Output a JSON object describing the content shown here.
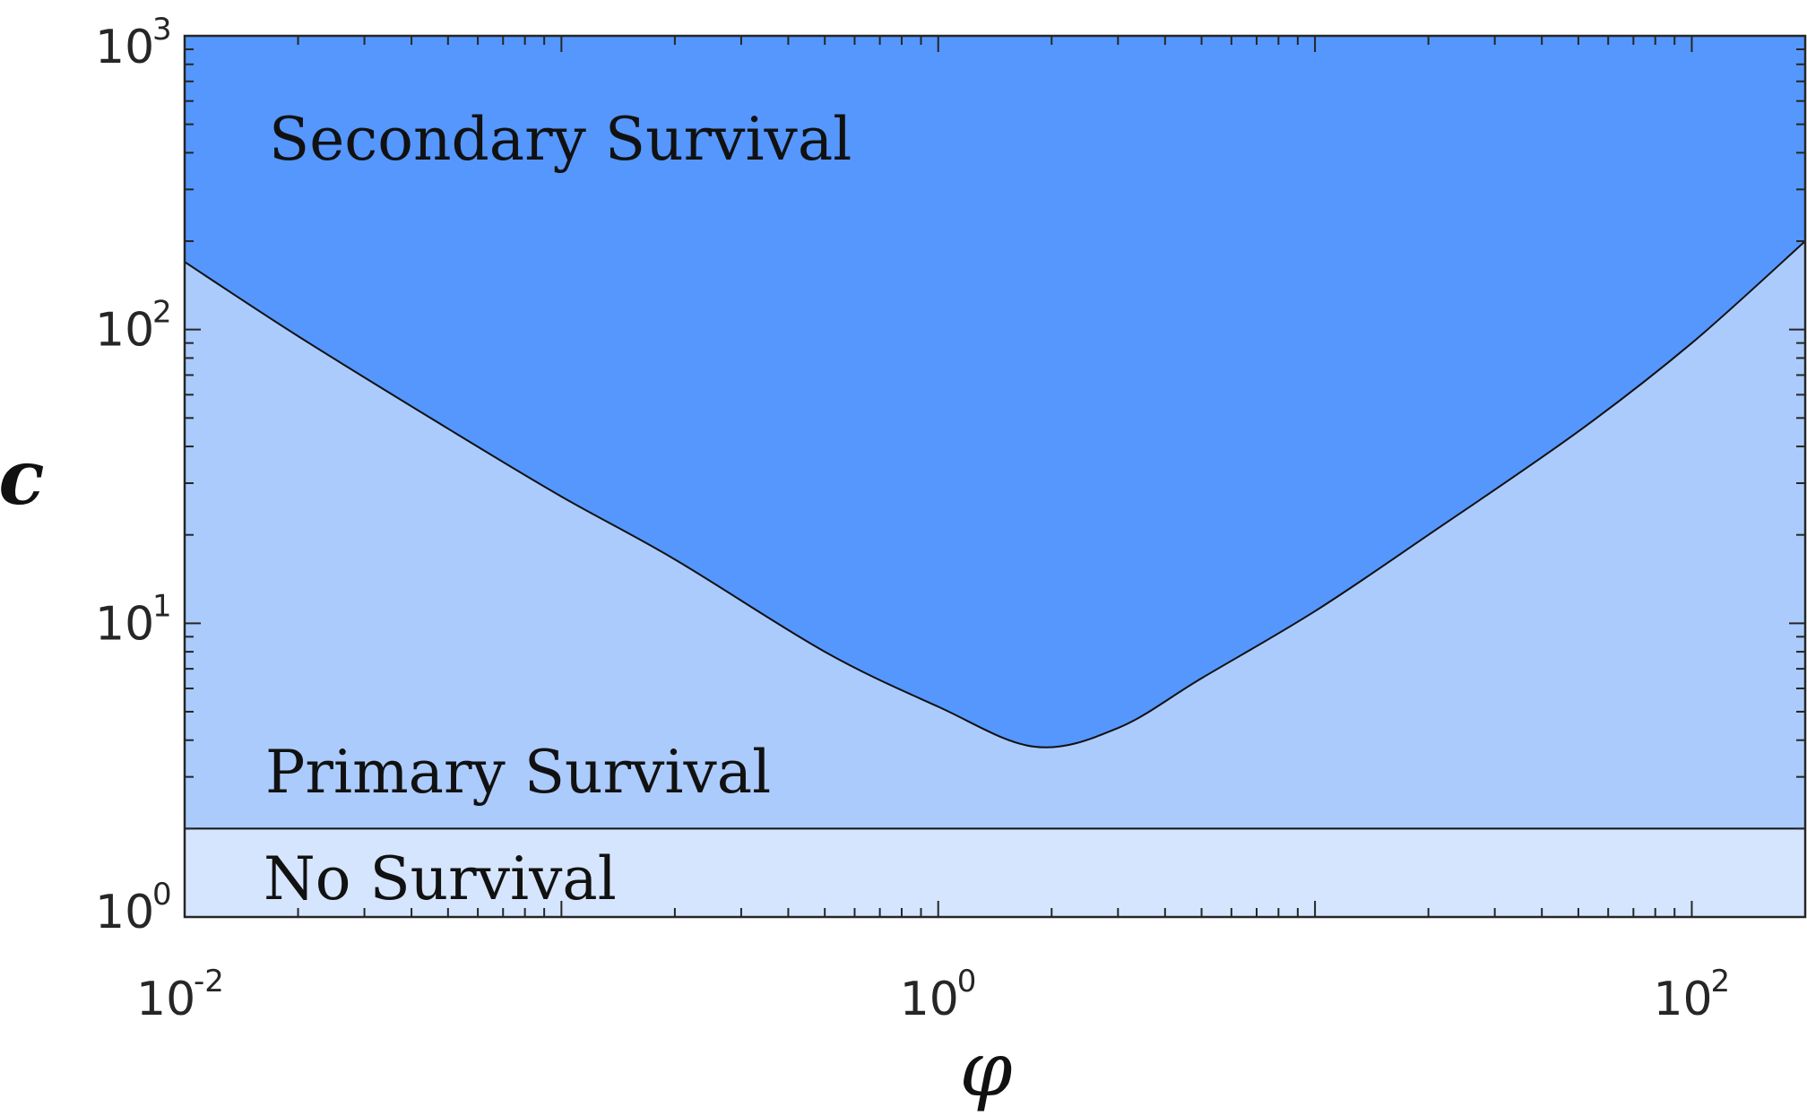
{
  "chart_data": {
    "type": "area",
    "xscale": "log",
    "yscale": "log",
    "xlabel": "φ",
    "ylabel": "c",
    "xlim": [
      0.01,
      200
    ],
    "ylim": [
      1,
      1000
    ],
    "grid": false,
    "x_ticks": [
      {
        "value": 0.01,
        "base": "10",
        "exp": "-2"
      },
      {
        "value": 1,
        "base": "10",
        "exp": "0"
      },
      {
        "value": 100,
        "base": "10",
        "exp": "2"
      }
    ],
    "y_ticks": [
      {
        "value": 1,
        "base": "10",
        "exp": "0"
      },
      {
        "value": 10,
        "base": "10",
        "exp": "1"
      },
      {
        "value": 100,
        "base": "10",
        "exp": "2"
      },
      {
        "value": 1000,
        "base": "10",
        "exp": "3"
      }
    ],
    "no_survival_threshold": 2,
    "secondary_boundary": {
      "x": [
        0.01,
        0.02,
        0.05,
        0.1,
        0.2,
        0.5,
        1,
        1.8,
        3,
        5,
        10,
        20,
        50,
        100,
        200
      ],
      "y": [
        170,
        95,
        46,
        27,
        16.5,
        8,
        5.2,
        3.8,
        4.4,
        6.5,
        11,
        20,
        45,
        90,
        200
      ]
    },
    "regions": [
      {
        "label": "Secondary Survival",
        "color": "#5597fd"
      },
      {
        "label": "Primary Survival",
        "color": "#abcbfc"
      },
      {
        "label": "No Survival",
        "color": "#d5e5fd"
      }
    ]
  }
}
